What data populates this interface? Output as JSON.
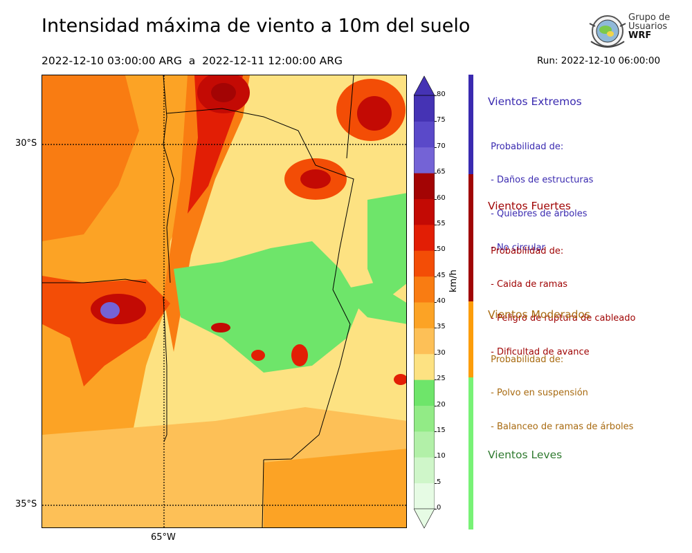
{
  "title": "Intensidad máxima de viento a 10m del suelo",
  "period": "2022-12-10 03:00:00 ARG  a  2022-12-11 12:00:00 ARG",
  "run": "Run: 2022-12-10 06:00:00",
  "logo": {
    "line1": "Grupo de",
    "line2": "Usuarios",
    "line3": "WRF"
  },
  "map": {
    "lat_labels": [
      "30°S",
      "35°S"
    ],
    "lon_labels": [
      "65°W"
    ]
  },
  "colorbar": {
    "unit": "km/h",
    "ticks": [
      "0",
      "5",
      "10",
      "15",
      "20",
      "25",
      "30",
      "35",
      "40",
      "45",
      "50",
      "55",
      "60",
      "65",
      "70",
      "75",
      "80"
    ],
    "colors": [
      "#e6fbe4",
      "#cff6c9",
      "#b2f0a8",
      "#92eb86",
      "#6ee56a",
      "#fde282",
      "#fdc057",
      "#fca325",
      "#f97c12",
      "#f34d06",
      "#e21e05",
      "#c30a04",
      "#a30404",
      "#7463d6",
      "#5a49c9",
      "#4533b4"
    ]
  },
  "categories": [
    {
      "title": "Vientos Extremos",
      "color": "#3a2ab0",
      "lines": [
        " Probabilidad de:",
        " - Daños de estructuras",
        " - Quiebres de árboles",
        " - No circular"
      ]
    },
    {
      "title": "Vientos Fuertes",
      "color": "#a00505",
      "lines": [
        " Probabilidad de:",
        " - Caida de ramas",
        " - Peligro de ruptura de cableado",
        " - Dificultad de avance"
      ]
    },
    {
      "title": "Vientos Moderados",
      "color": "#a86a10",
      "lines": [
        " Probabilidad de:",
        " - Polvo en suspensión",
        " - Balanceo de ramas de árboles"
      ]
    },
    {
      "title": "Vientos Leves",
      "color": "#2f7a2f",
      "lines": []
    }
  ],
  "category_bar_colors": [
    "#3a2ab0",
    "#a00505",
    "#fc9d0a",
    "#78f276"
  ]
}
